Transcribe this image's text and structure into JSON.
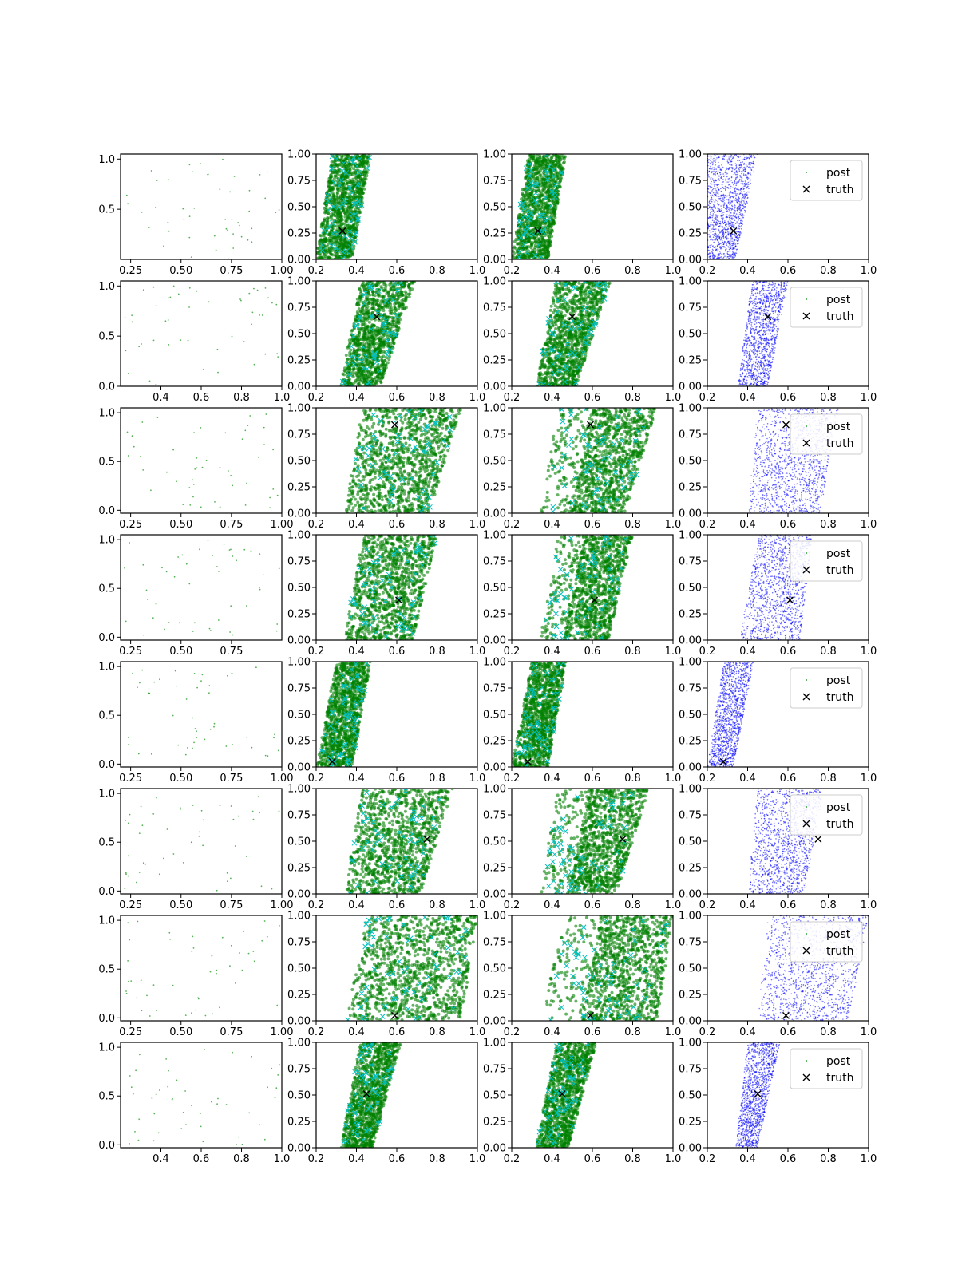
{
  "figure": {
    "rows": 8,
    "cols": 4,
    "legend": {
      "post_label": "post",
      "truth_label": "truth",
      "placement": "upper-right of last column"
    }
  },
  "colors": {
    "prior": "#2ca02c",
    "sample_red": "#ff0000",
    "sample_green": "#008000",
    "sample_cyan": "#00bfbf",
    "post": "#0000ff",
    "truth": "#000000",
    "axes": "#000000"
  },
  "chart_data": {
    "type": "scatter",
    "description_of_panels": "col 1: prior samples (green dots); col 2 and 3: red band of samples plus green/cyan samples; col 4: red band plus blue posterior samples; black x marks truth in cols 2-4",
    "shared_ylim": [
      0,
      1
    ],
    "shared_yticks": [
      "0.00",
      "0.25",
      "0.50",
      "0.75",
      "1.00"
    ],
    "shared_xlim": [
      0.2,
      1.0
    ],
    "shared_xticks": [
      "0.2",
      "0.4",
      "0.6",
      "0.8",
      "1.0"
    ],
    "red_band": {
      "left_at_y0": 0.2,
      "right_at_y0": 0.32,
      "left_at_y1": 0.2,
      "right_at_y1": 0.42
    },
    "rows": [
      {
        "truth": [
          0.33,
          0.27
        ],
        "green": {
          "lo0": 0.2,
          "hi0": 0.38,
          "lo1": 0.28,
          "hi1": 0.47
        },
        "col3_gap": false,
        "blue": {
          "lo0": 0.2,
          "hi0": 0.34,
          "lo1": 0.2,
          "hi1": 0.45
        },
        "col1_xticks": [
          "0.25",
          "0.50",
          "0.75",
          "1.00"
        ],
        "col1_xlim": [
          0.2,
          1.0
        ],
        "col1_yticks": [
          "0.5",
          "1.0"
        ],
        "col1_ylim": [
          0.0,
          1.05
        ],
        "legend": true
      },
      {
        "truth": [
          0.5,
          0.66
        ],
        "green": {
          "lo0": 0.32,
          "hi0": 0.52,
          "lo1": 0.42,
          "hi1": 0.69
        },
        "col3_gap": false,
        "blue": {
          "lo0": 0.35,
          "hi0": 0.5,
          "lo1": 0.42,
          "hi1": 0.6
        },
        "col1_xticks": [
          "0.4",
          "0.6",
          "0.8",
          "1.0"
        ],
        "col1_xlim": [
          0.2,
          1.0
        ],
        "col1_yticks": [
          "0.0",
          "0.5",
          "1.0"
        ],
        "col1_ylim": [
          0.0,
          1.05
        ],
        "legend": true
      },
      {
        "truth": [
          0.59,
          0.84
        ],
        "green": {
          "lo0": 0.34,
          "hi0": 0.76,
          "lo1": 0.43,
          "hi1": 0.92
        },
        "col3_gap": true,
        "blue": {
          "lo0": 0.4,
          "hi0": 0.76,
          "lo1": 0.45,
          "hi1": 0.85
        },
        "col1_xticks": [
          "0.25",
          "0.50",
          "0.75",
          "1.00"
        ],
        "col1_xlim": [
          0.2,
          1.0
        ],
        "col1_yticks": [
          "0.0",
          "0.5",
          "1.0"
        ],
        "col1_ylim": [
          -0.03,
          1.05
        ],
        "legend": true
      },
      {
        "truth": [
          0.61,
          0.38
        ],
        "green": {
          "lo0": 0.34,
          "hi0": 0.68,
          "lo1": 0.43,
          "hi1": 0.8
        },
        "col3_gap": true,
        "blue": {
          "lo0": 0.36,
          "hi0": 0.66,
          "lo1": 0.45,
          "hi1": 0.72
        },
        "col1_xticks": [
          "0.25",
          "0.50",
          "0.75"
        ],
        "col1_xlim": [
          0.2,
          1.0
        ],
        "col1_yticks": [
          "0.0",
          "0.5",
          "1.0"
        ],
        "col1_ylim": [
          -0.03,
          1.05
        ],
        "legend": true
      },
      {
        "truth": [
          0.28,
          0.05
        ],
        "green": {
          "lo0": 0.2,
          "hi0": 0.38,
          "lo1": 0.3,
          "hi1": 0.47
        },
        "col3_gap": false,
        "blue": {
          "lo0": 0.2,
          "hi0": 0.33,
          "lo1": 0.28,
          "hi1": 0.43
        },
        "col1_xticks": [
          "0.25",
          "0.50",
          "0.75",
          "1.00"
        ],
        "col1_xlim": [
          0.2,
          1.0
        ],
        "col1_yticks": [
          "0.0",
          "0.5",
          "1.0"
        ],
        "col1_ylim": [
          -0.03,
          1.05
        ],
        "legend": true
      },
      {
        "truth": [
          0.75,
          0.52
        ],
        "green": {
          "lo0": 0.34,
          "hi0": 0.72,
          "lo1": 0.43,
          "hi1": 0.88
        },
        "col3_gap": true,
        "blue": {
          "lo0": 0.4,
          "hi0": 0.68,
          "lo1": 0.45,
          "hi1": 0.78
        },
        "col1_xticks": [
          "0.25",
          "0.50",
          "0.75",
          "1.00"
        ],
        "col1_xlim": [
          0.2,
          1.0
        ],
        "col1_yticks": [
          "0.0",
          "0.5",
          "1.0"
        ],
        "col1_ylim": [
          -0.03,
          1.05
        ],
        "legend": true
      },
      {
        "truth": [
          0.59,
          0.05
        ],
        "green": {
          "lo0": 0.35,
          "hi0": 0.92,
          "lo1": 0.45,
          "hi1": 1.0
        },
        "col3_gap": true,
        "blue": {
          "lo0": 0.45,
          "hi0": 0.9,
          "lo1": 0.5,
          "hi1": 1.0
        },
        "col1_xticks": [
          "0.25",
          "0.50",
          "0.75",
          "1.00"
        ],
        "col1_xlim": [
          0.2,
          1.0
        ],
        "col1_yticks": [
          "0.0",
          "0.5",
          "1.0"
        ],
        "col1_ylim": [
          -0.03,
          1.05
        ],
        "legend": true
      },
      {
        "truth": [
          0.45,
          0.51
        ],
        "green": {
          "lo0": 0.32,
          "hi0": 0.48,
          "lo1": 0.42,
          "hi1": 0.62
        },
        "col3_gap": false,
        "blue": {
          "lo0": 0.34,
          "hi0": 0.45,
          "lo1": 0.4,
          "hi1": 0.56
        },
        "col1_xticks": [
          "0.4",
          "0.6",
          "0.8",
          "1.0"
        ],
        "col1_xlim": [
          0.2,
          1.0
        ],
        "col1_yticks": [
          "0.0",
          "0.5",
          "1.0"
        ],
        "col1_ylim": [
          -0.03,
          1.05
        ],
        "legend": true
      }
    ]
  }
}
